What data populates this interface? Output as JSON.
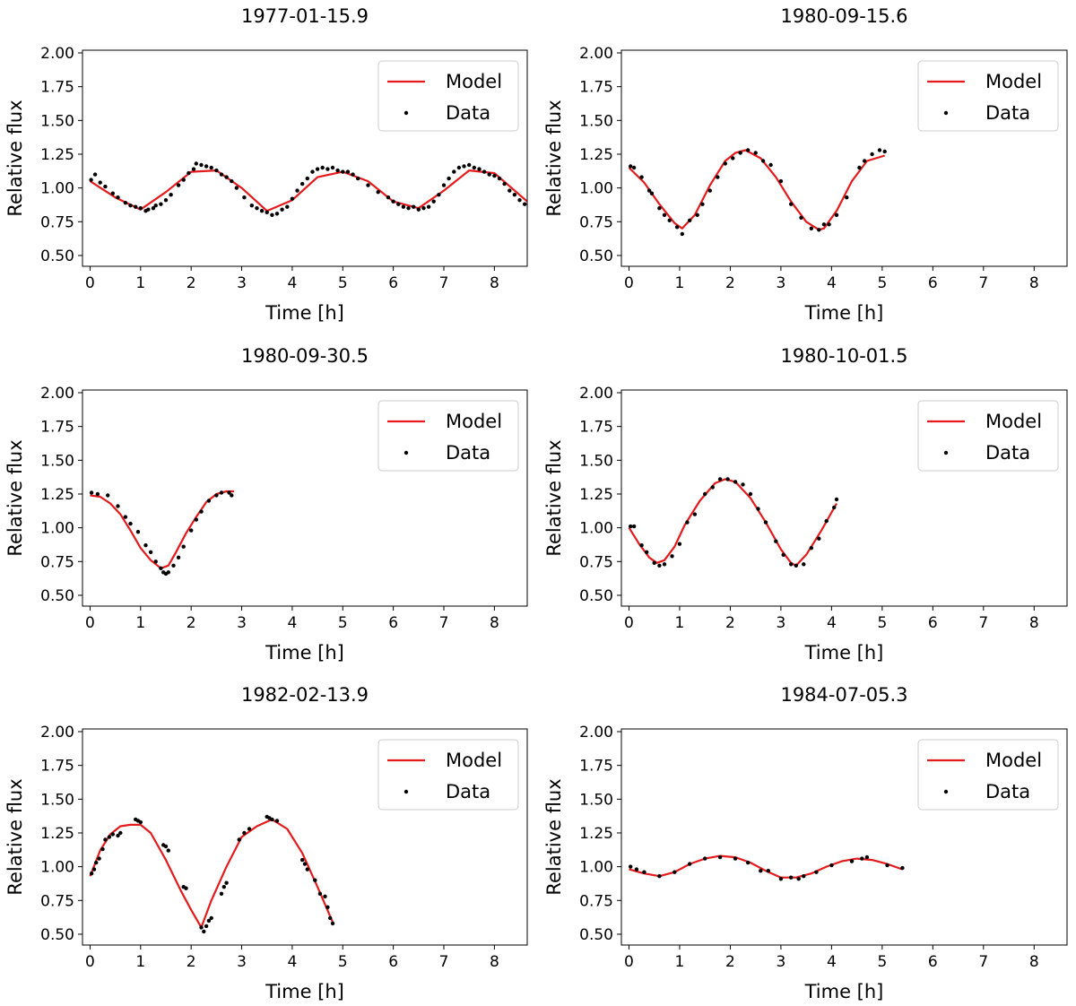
{
  "chart_data": [
    {
      "type": "line",
      "title": "1977-01-15.9",
      "xlabel": "Time [h]",
      "ylabel": "Relative flux",
      "xlim": [
        -0.15,
        8.65
      ],
      "ylim": [
        0.42,
        2.02
      ],
      "xticks": [
        0,
        1,
        2,
        3,
        4,
        5,
        6,
        7,
        8
      ],
      "yticks": [
        "0.50",
        "0.75",
        "1.00",
        "1.25",
        "1.50",
        "1.75",
        "2.00"
      ],
      "legend": [
        "Model",
        "Data"
      ],
      "model": {
        "x": [
          0,
          0.5,
          1,
          1.5,
          2,
          2.5,
          3,
          3.5,
          4,
          4.5,
          5,
          5.5,
          6,
          6.5,
          7,
          7.5,
          8,
          8.65
        ],
        "y": [
          1.05,
          0.93,
          0.84,
          0.97,
          1.12,
          1.13,
          1.0,
          0.83,
          0.91,
          1.08,
          1.12,
          1.05,
          0.9,
          0.85,
          0.98,
          1.13,
          1.11,
          0.9
        ]
      },
      "data": {
        "x": [
          0.02,
          0.1,
          0.2,
          0.3,
          0.45,
          0.55,
          0.7,
          0.8,
          0.9,
          1.0,
          1.1,
          1.15,
          1.25,
          1.3,
          1.4,
          1.5,
          1.6,
          1.75,
          1.85,
          1.95,
          2.05,
          2.1,
          2.2,
          2.3,
          2.4,
          2.5,
          2.6,
          2.7,
          2.8,
          2.9,
          3.05,
          3.2,
          3.3,
          3.4,
          3.5,
          3.6,
          3.7,
          3.8,
          3.9,
          4.0,
          4.1,
          4.2,
          4.3,
          4.4,
          4.5,
          4.6,
          4.7,
          4.8,
          4.9,
          5.0,
          5.1,
          5.2,
          5.3,
          5.5,
          5.7,
          5.9,
          6.0,
          6.1,
          6.2,
          6.3,
          6.4,
          6.5,
          6.6,
          6.7,
          6.8,
          6.9,
          7.0,
          7.1,
          7.2,
          7.3,
          7.4,
          7.5,
          7.6,
          7.7,
          7.8,
          7.9,
          8.0,
          8.1,
          8.2,
          8.3,
          8.4,
          8.5,
          8.6
        ],
        "y": [
          1.06,
          1.1,
          1.04,
          1.01,
          0.96,
          0.93,
          0.89,
          0.87,
          0.86,
          0.85,
          0.83,
          0.84,
          0.85,
          0.87,
          0.88,
          0.91,
          0.95,
          1.02,
          1.06,
          1.11,
          1.14,
          1.18,
          1.17,
          1.16,
          1.15,
          1.13,
          1.1,
          1.08,
          1.05,
          1.0,
          0.93,
          0.87,
          0.85,
          0.83,
          0.82,
          0.8,
          0.81,
          0.84,
          0.86,
          0.92,
          0.98,
          1.03,
          1.07,
          1.12,
          1.14,
          1.15,
          1.14,
          1.15,
          1.13,
          1.12,
          1.12,
          1.1,
          1.07,
          1.02,
          0.97,
          0.93,
          0.9,
          0.88,
          0.86,
          0.85,
          0.86,
          0.84,
          0.85,
          0.86,
          0.9,
          0.95,
          1.02,
          1.07,
          1.12,
          1.15,
          1.16,
          1.17,
          1.15,
          1.14,
          1.12,
          1.1,
          1.09,
          1.07,
          1.03,
          0.98,
          0.95,
          0.91,
          0.88
        ]
      }
    },
    {
      "type": "line",
      "title": "1980-09-15.6",
      "xlabel": "Time [h]",
      "ylabel": "Relative flux",
      "xlim": [
        -0.15,
        8.65
      ],
      "ylim": [
        0.42,
        2.02
      ],
      "xticks": [
        0,
        1,
        2,
        3,
        4,
        5,
        6,
        7,
        8
      ],
      "yticks": [
        "0.50",
        "0.75",
        "1.00",
        "1.25",
        "1.50",
        "1.75",
        "2.00"
      ],
      "legend": [
        "Model",
        "Data"
      ],
      "model": {
        "x": [
          0,
          0.3,
          0.6,
          0.9,
          1.05,
          1.3,
          1.6,
          1.9,
          2.1,
          2.3,
          2.6,
          2.9,
          3.2,
          3.5,
          3.75,
          3.85,
          4.1,
          4.4,
          4.7,
          5.05
        ],
        "y": [
          1.15,
          1.04,
          0.88,
          0.74,
          0.7,
          0.8,
          1.02,
          1.2,
          1.26,
          1.28,
          1.22,
          1.08,
          0.9,
          0.75,
          0.69,
          0.7,
          0.83,
          1.05,
          1.2,
          1.24
        ]
      },
      "data": {
        "x": [
          0.03,
          0.1,
          0.25,
          0.4,
          0.45,
          0.6,
          0.7,
          0.8,
          0.95,
          1.05,
          1.2,
          1.35,
          1.45,
          1.6,
          1.75,
          1.9,
          2.05,
          2.2,
          2.35,
          2.5,
          2.65,
          2.8,
          3.0,
          3.2,
          3.4,
          3.6,
          3.75,
          3.85,
          3.95,
          4.1,
          4.3,
          4.55,
          4.65,
          4.8,
          4.95,
          5.05
        ],
        "y": [
          1.16,
          1.15,
          1.08,
          0.98,
          0.96,
          0.85,
          0.8,
          0.76,
          0.71,
          0.66,
          0.76,
          0.8,
          0.88,
          0.98,
          1.08,
          1.18,
          1.22,
          1.26,
          1.28,
          1.26,
          1.2,
          1.17,
          1.05,
          0.88,
          0.78,
          0.7,
          0.69,
          0.73,
          0.73,
          0.8,
          0.93,
          1.15,
          1.2,
          1.25,
          1.28,
          1.27
        ]
      }
    },
    {
      "type": "line",
      "title": "1980-09-30.5",
      "xlabel": "Time [h]",
      "ylabel": "Relative flux",
      "xlim": [
        -0.15,
        8.65
      ],
      "ylim": [
        0.42,
        2.02
      ],
      "xticks": [
        0,
        1,
        2,
        3,
        4,
        5,
        6,
        7,
        8
      ],
      "yticks": [
        "0.50",
        "0.75",
        "1.00",
        "1.25",
        "1.50",
        "1.75",
        "2.00"
      ],
      "legend": [
        "Model",
        "Data"
      ],
      "model": {
        "x": [
          0,
          0.2,
          0.4,
          0.6,
          0.8,
          1.0,
          1.2,
          1.4,
          1.55,
          1.7,
          1.9,
          2.1,
          2.3,
          2.5,
          2.7,
          2.85
        ],
        "y": [
          1.24,
          1.23,
          1.18,
          1.1,
          0.98,
          0.85,
          0.76,
          0.7,
          0.72,
          0.82,
          0.96,
          1.08,
          1.19,
          1.25,
          1.27,
          1.27
        ]
      },
      "data": {
        "x": [
          0.03,
          0.15,
          0.35,
          0.55,
          0.7,
          0.8,
          0.95,
          1.1,
          1.2,
          1.3,
          1.4,
          1.45,
          1.5,
          1.55,
          1.65,
          1.75,
          1.85,
          2.0,
          2.1,
          2.2,
          2.35,
          2.5,
          2.6,
          2.75,
          2.8
        ],
        "y": [
          1.26,
          1.25,
          1.24,
          1.16,
          1.08,
          1.03,
          0.97,
          0.87,
          0.82,
          0.75,
          0.7,
          0.67,
          0.66,
          0.67,
          0.72,
          0.78,
          0.86,
          0.98,
          1.06,
          1.12,
          1.2,
          1.24,
          1.26,
          1.26,
          1.24
        ]
      }
    },
    {
      "type": "line",
      "title": "1980-10-01.5",
      "xlabel": "Time [h]",
      "ylabel": "Relative flux",
      "xlim": [
        -0.15,
        8.65
      ],
      "ylim": [
        0.42,
        2.02
      ],
      "xticks": [
        0,
        1,
        2,
        3,
        4,
        5,
        6,
        7,
        8
      ],
      "yticks": [
        "0.50",
        "0.75",
        "1.00",
        "1.25",
        "1.50",
        "1.75",
        "2.00"
      ],
      "legend": [
        "Model",
        "Data"
      ],
      "model": {
        "x": [
          0,
          0.2,
          0.4,
          0.55,
          0.7,
          0.9,
          1.1,
          1.4,
          1.7,
          1.9,
          2.1,
          2.4,
          2.7,
          3.0,
          3.2,
          3.3,
          3.5,
          3.8,
          4.1
        ],
        "y": [
          1.0,
          0.88,
          0.78,
          0.74,
          0.76,
          0.86,
          1.02,
          1.2,
          1.33,
          1.36,
          1.34,
          1.22,
          1.04,
          0.84,
          0.74,
          0.72,
          0.8,
          0.98,
          1.18
        ]
      },
      "data": {
        "x": [
          0.03,
          0.1,
          0.25,
          0.35,
          0.5,
          0.6,
          0.7,
          0.85,
          1.0,
          1.15,
          1.3,
          1.5,
          1.65,
          1.8,
          1.95,
          2.1,
          2.25,
          2.4,
          2.55,
          2.7,
          2.9,
          3.05,
          3.2,
          3.3,
          3.45,
          3.6,
          3.75,
          3.9,
          4.05,
          4.1
        ],
        "y": [
          1.01,
          1.01,
          0.87,
          0.82,
          0.74,
          0.72,
          0.73,
          0.79,
          0.88,
          1.04,
          1.1,
          1.25,
          1.3,
          1.36,
          1.36,
          1.34,
          1.32,
          1.25,
          1.14,
          1.04,
          0.9,
          0.8,
          0.73,
          0.72,
          0.73,
          0.85,
          0.92,
          1.05,
          1.15,
          1.21
        ]
      }
    },
    {
      "type": "line",
      "title": "1982-02-13.9",
      "xlabel": "Time [h]",
      "ylabel": "Relative flux",
      "xlim": [
        -0.15,
        8.65
      ],
      "ylim": [
        0.42,
        2.02
      ],
      "xticks": [
        0,
        1,
        2,
        3,
        4,
        5,
        6,
        7,
        8
      ],
      "yticks": [
        "0.50",
        "0.75",
        "1.00",
        "1.25",
        "1.50",
        "1.75",
        "2.00"
      ],
      "legend": [
        "Model",
        "Data"
      ],
      "model": {
        "x": [
          0,
          0.2,
          0.4,
          0.6,
          0.8,
          1.0,
          1.2,
          1.5,
          1.8,
          2.0,
          2.2,
          2.4,
          2.7,
          3.0,
          3.3,
          3.6,
          3.9,
          4.2,
          4.5,
          4.8
        ],
        "y": [
          0.93,
          1.12,
          1.24,
          1.3,
          1.31,
          1.31,
          1.25,
          1.05,
          0.82,
          0.68,
          0.55,
          0.75,
          1.0,
          1.22,
          1.3,
          1.35,
          1.28,
          1.1,
          0.85,
          0.59
        ]
      },
      "data": {
        "x": [
          0.03,
          0.08,
          0.12,
          0.18,
          0.25,
          0.3,
          0.38,
          0.45,
          0.55,
          0.6,
          0.9,
          0.95,
          1.0,
          1.45,
          1.5,
          1.55,
          1.85,
          1.9,
          2.2,
          2.25,
          2.3,
          2.35,
          2.4,
          2.6,
          2.65,
          2.7,
          2.95,
          3.05,
          3.15,
          3.5,
          3.55,
          3.6,
          3.7,
          4.2,
          4.25,
          4.3,
          4.45,
          4.55,
          4.65,
          4.7,
          4.75,
          4.8
        ],
        "y": [
          0.95,
          0.98,
          1.03,
          1.06,
          1.13,
          1.2,
          1.22,
          1.24,
          1.23,
          1.25,
          1.35,
          1.34,
          1.33,
          1.16,
          1.15,
          1.12,
          0.85,
          0.84,
          0.55,
          0.52,
          0.56,
          0.6,
          0.62,
          0.8,
          0.85,
          0.88,
          1.2,
          1.25,
          1.28,
          1.37,
          1.36,
          1.35,
          1.34,
          1.05,
          1.02,
          0.98,
          0.9,
          0.8,
          0.78,
          0.7,
          0.62,
          0.58
        ]
      }
    },
    {
      "type": "line",
      "title": "1984-07-05.3",
      "xlabel": "Time [h]",
      "ylabel": "Relative flux",
      "xlim": [
        -0.15,
        8.65
      ],
      "ylim": [
        0.42,
        2.02
      ],
      "xticks": [
        0,
        1,
        2,
        3,
        4,
        5,
        6,
        7,
        8
      ],
      "yticks": [
        "0.50",
        "0.75",
        "1.00",
        "1.25",
        "1.50",
        "1.75",
        "2.00"
      ],
      "legend": [
        "Model",
        "Data"
      ],
      "model": {
        "x": [
          0,
          0.3,
          0.6,
          0.9,
          1.2,
          1.5,
          1.8,
          2.1,
          2.4,
          2.7,
          3.0,
          3.3,
          3.6,
          3.9,
          4.2,
          4.5,
          4.8,
          5.1,
          5.4
        ],
        "y": [
          0.98,
          0.95,
          0.93,
          0.96,
          1.02,
          1.06,
          1.08,
          1.07,
          1.03,
          0.97,
          0.92,
          0.92,
          0.95,
          1.0,
          1.04,
          1.06,
          1.05,
          1.02,
          0.98
        ]
      },
      "data": {
        "x": [
          0.03,
          0.15,
          0.3,
          0.6,
          0.9,
          1.2,
          1.5,
          1.8,
          2.1,
          2.35,
          2.6,
          2.75,
          3.0,
          3.2,
          3.35,
          3.45,
          3.7,
          4.0,
          4.4,
          4.6,
          4.7,
          5.1,
          5.4
        ],
        "y": [
          1.0,
          0.98,
          0.96,
          0.93,
          0.96,
          1.02,
          1.06,
          1.07,
          1.06,
          1.03,
          0.97,
          0.97,
          0.91,
          0.92,
          0.91,
          0.93,
          0.96,
          1.01,
          1.04,
          1.06,
          1.07,
          1.01,
          0.99
        ]
      }
    }
  ]
}
